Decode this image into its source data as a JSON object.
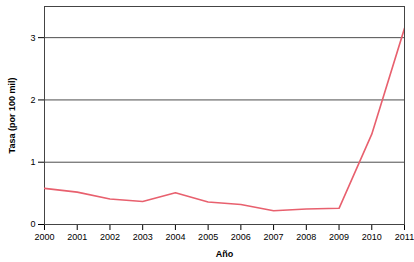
{
  "chart_data": {
    "type": "line",
    "x": [
      2000,
      2001,
      2002,
      2003,
      2004,
      2005,
      2006,
      2007,
      2008,
      2009,
      2010,
      2011
    ],
    "values": [
      0.58,
      0.52,
      0.41,
      0.37,
      0.51,
      0.36,
      0.32,
      0.22,
      0.25,
      0.26,
      1.45,
      3.15
    ],
    "color": "#e8606e",
    "xlabel": "Año",
    "ylabel": "Tasa (por 100 mil)",
    "xlim": [
      2000,
      2011
    ],
    "xticks": [
      2000,
      2001,
      2002,
      2003,
      2004,
      2005,
      2006,
      2007,
      2008,
      2009,
      2010,
      2011
    ],
    "ylim": [
      0,
      3.5
    ],
    "yticks": [
      0,
      1,
      2,
      3
    ],
    "grid": true
  }
}
